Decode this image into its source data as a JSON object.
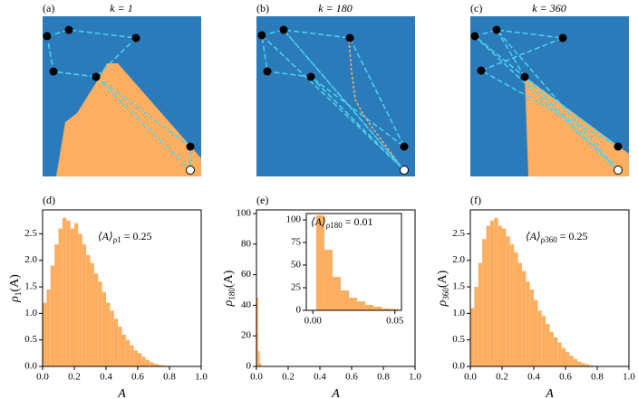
{
  "panels": [
    {
      "label": "(a)",
      "title": "k = 1"
    },
    {
      "label": "(b)",
      "title": "k = 180"
    },
    {
      "label": "(c)",
      "title": "k = 360"
    }
  ],
  "chart_data": [
    {
      "type": "histogram",
      "label": "(d)",
      "xlabel": "A",
      "ylabel": {
        "text": "ρ",
        "subscript": "1",
        "suffix": "(A)"
      },
      "annotation": {
        "text": "⟨A⟩",
        "subscript": "ρ1",
        "suffix": " = 0.25"
      },
      "color": "#fdae61",
      "bins": [
        0,
        0.025,
        0.05,
        0.075,
        0.1,
        0.125,
        0.15,
        0.175,
        0.2,
        0.225,
        0.25,
        0.275,
        0.3,
        0.325,
        0.35,
        0.375,
        0.4,
        0.425,
        0.45,
        0.475,
        0.5,
        0.525,
        0.55,
        0.575,
        0.6,
        0.625,
        0.65,
        0.675,
        0.7,
        0.725,
        0.75,
        0.775,
        0.8
      ],
      "counts": [
        1.2,
        1.45,
        1.9,
        2.3,
        2.6,
        2.8,
        2.75,
        2.6,
        2.7,
        2.5,
        2.3,
        2.1,
        1.95,
        1.75,
        1.6,
        1.4,
        1.2,
        1.05,
        0.9,
        0.75,
        0.6,
        0.5,
        0.4,
        0.3,
        0.25,
        0.18,
        0.12,
        0.08,
        0.05,
        0.03,
        0.02,
        0.01
      ],
      "xlim": [
        0,
        1
      ],
      "ylim": [
        0,
        2.95
      ],
      "xticks": [
        {
          "value": 0,
          "label": "0.0"
        },
        0.2,
        0.4,
        0.6,
        0.8,
        {
          "value": 1,
          "label": "1.0"
        }
      ],
      "yticks": [
        {
          "value": 0,
          "label": "0.0"
        },
        0.5,
        {
          "value": 1,
          "label": "1.0"
        },
        1.5,
        {
          "value": 2,
          "label": "2.0"
        },
        2.5
      ]
    },
    {
      "type": "histogram",
      "label": "(e)",
      "xlabel": "A",
      "ylabel": {
        "text": "ρ",
        "subscript": "180",
        "suffix": "(A)"
      },
      "color": "#fdae61",
      "bins": [
        0,
        0.01,
        0.02,
        0.03
      ],
      "counts": [
        45,
        10,
        2
      ],
      "xlim": [
        0,
        1
      ],
      "ylim": [
        0,
        102.4
      ],
      "xticks": [
        {
          "value": 0,
          "label": "0.0"
        },
        0.2,
        0.4,
        0.6,
        0.8,
        {
          "value": 1,
          "label": "1.0"
        }
      ],
      "yticks": [
        0,
        20,
        40,
        60,
        80,
        100
      ]
    },
    {
      "type": "histogram",
      "label": "(f)",
      "xlabel": "A",
      "ylabel": {
        "text": "ρ",
        "subscript": "360",
        "suffix": "(A)"
      },
      "annotation": {
        "text": "⟨A⟩",
        "subscript": "ρ360",
        "suffix": " = 0.25"
      },
      "color": "#fdae61",
      "bins": [
        0,
        0.025,
        0.05,
        0.075,
        0.1,
        0.125,
        0.15,
        0.175,
        0.2,
        0.225,
        0.25,
        0.275,
        0.3,
        0.325,
        0.35,
        0.375,
        0.4,
        0.425,
        0.45,
        0.475,
        0.5,
        0.525,
        0.55,
        0.575,
        0.6,
        0.625,
        0.65,
        0.675,
        0.7,
        0.725,
        0.75,
        0.775,
        0.8
      ],
      "counts": [
        1.1,
        1.5,
        1.95,
        2.4,
        2.65,
        2.75,
        2.8,
        2.65,
        2.6,
        2.45,
        2.3,
        2.15,
        1.95,
        1.8,
        1.6,
        1.45,
        1.25,
        1.05,
        0.95,
        0.8,
        0.65,
        0.55,
        0.45,
        0.35,
        0.27,
        0.2,
        0.14,
        0.09,
        0.06,
        0.04,
        0.02,
        0.01
      ],
      "xlim": [
        0,
        1
      ],
      "ylim": [
        0,
        2.95
      ],
      "xticks": [
        {
          "value": 0,
          "label": "0.0"
        },
        0.2,
        0.4,
        0.6,
        0.8,
        {
          "value": 1,
          "label": "1.0"
        }
      ],
      "yticks": [
        {
          "value": 0,
          "label": "0.0"
        },
        0.5,
        {
          "value": 1,
          "label": "1.0"
        },
        1.5,
        {
          "value": 2,
          "label": "2.0"
        },
        2.5
      ]
    },
    {
      "type": "histogram",
      "annotation": {
        "text": "⟨A⟩",
        "subscript": "ρ180",
        "suffix": " = 0.01"
      },
      "color": "#fdae61",
      "bins": [
        0.002,
        0.007,
        0.012,
        0.017,
        0.022,
        0.027,
        0.032,
        0.037,
        0.042,
        0.047,
        0.052
      ],
      "counts": [
        105,
        67,
        37,
        22,
        14,
        10,
        6,
        4,
        2,
        1.5
      ],
      "xlim": [
        -0.004,
        0.054
      ],
      "ylim": [
        0,
        107
      ],
      "xticks": [
        {
          "value": 0,
          "label": "0.00"
        },
        {
          "value": 0.05,
          "label": "0.05"
        }
      ],
      "yticks": [
        0,
        25,
        50,
        75,
        100
      ]
    }
  ]
}
